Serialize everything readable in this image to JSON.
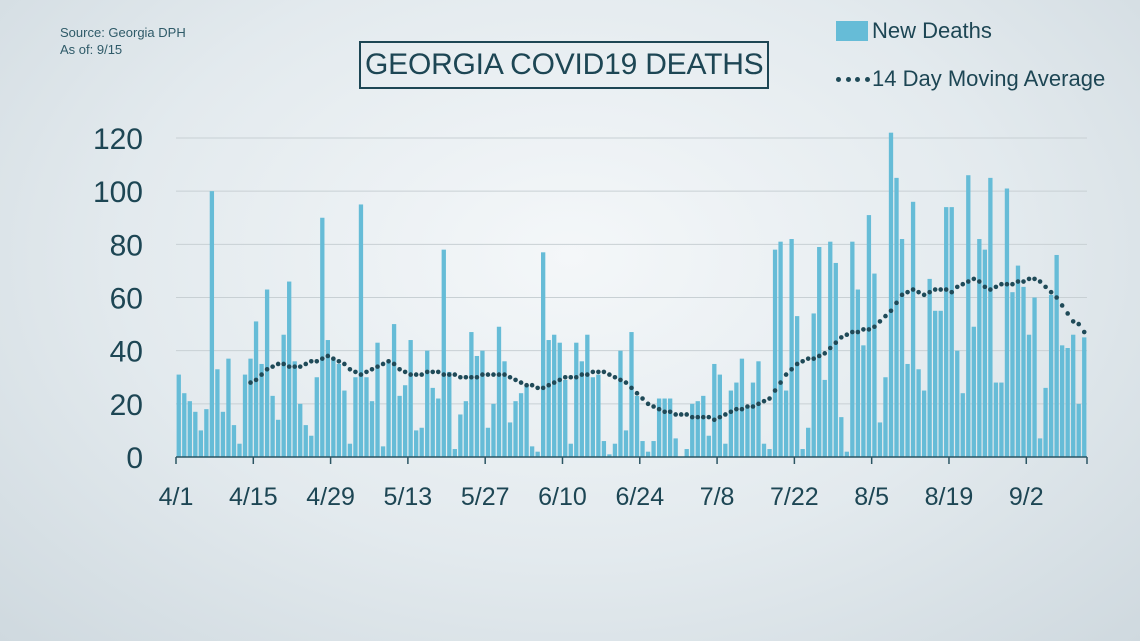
{
  "source": {
    "line1": "Source: Georgia DPH",
    "line2": "As of: 9/15"
  },
  "title": "GEORGIA COVID19 DEATHS",
  "legend": {
    "bars": "New Deaths",
    "line": "14 Day Moving Average"
  },
  "colors": {
    "bar": "#66bcd7",
    "avg": "#1f4a58",
    "text": "#1d4654",
    "grid": "#c8d0d4"
  },
  "chart_data": {
    "type": "bar",
    "title": "GEORGIA COVID19 DEATHS",
    "xlabel": "",
    "ylabel": "",
    "ylim": [
      0,
      120
    ],
    "yticks": [
      0,
      20,
      40,
      60,
      80,
      100,
      120
    ],
    "xticks": [
      "4/1",
      "4/15",
      "4/29",
      "5/13",
      "5/27",
      "6/10",
      "6/24",
      "7/8",
      "7/22",
      "8/5",
      "8/19",
      "9/2"
    ],
    "start_date": "4/1",
    "grid": true,
    "legend_position": "top-right",
    "series": [
      {
        "name": "New Deaths",
        "type": "bar",
        "values": [
          31,
          24,
          21,
          17,
          10,
          18,
          100,
          33,
          17,
          37,
          12,
          5,
          31,
          37,
          51,
          35,
          63,
          23,
          14,
          46,
          66,
          36,
          20,
          12,
          8,
          30,
          90,
          44,
          37,
          35,
          25,
          5,
          30,
          95,
          30,
          21,
          43,
          4,
          36,
          50,
          23,
          27,
          44,
          10,
          11,
          40,
          26,
          22,
          78,
          32,
          3,
          16,
          21,
          47,
          38,
          40,
          11,
          20,
          49,
          36,
          13,
          21,
          24,
          27,
          4,
          2,
          77,
          44,
          46,
          43,
          29,
          5,
          43,
          36,
          46,
          30,
          31,
          6,
          1,
          5,
          40,
          10,
          47,
          23,
          6,
          2,
          6,
          22,
          22,
          22,
          7,
          0,
          3,
          20,
          21,
          23,
          8,
          35,
          31,
          5,
          25,
          28,
          37,
          19,
          28,
          36,
          5,
          3,
          78,
          81,
          25,
          82,
          53,
          3,
          11,
          54,
          79,
          29,
          81,
          73,
          15,
          2,
          81,
          63,
          42,
          91,
          69,
          13,
          30,
          122,
          105,
          82,
          35,
          96,
          33,
          25,
          67,
          55,
          55,
          94,
          94,
          40,
          24,
          106,
          49,
          82,
          78,
          105,
          28,
          28,
          101,
          62,
          72,
          64,
          46,
          60,
          7,
          26,
          61,
          76,
          42,
          41,
          46,
          20,
          45
        ]
      },
      {
        "name": "14 Day Moving Average",
        "type": "line",
        "values": [
          null,
          null,
          null,
          null,
          null,
          null,
          null,
          null,
          null,
          null,
          null,
          null,
          null,
          28,
          29,
          31,
          33,
          34,
          35,
          35,
          34,
          34,
          34,
          35,
          36,
          36,
          37,
          38,
          37,
          36,
          35,
          33,
          32,
          31,
          32,
          33,
          34,
          35,
          36,
          35,
          33,
          32,
          31,
          31,
          31,
          32,
          32,
          32,
          31,
          31,
          31,
          30,
          30,
          30,
          30,
          31,
          31,
          31,
          31,
          31,
          30,
          29,
          28,
          27,
          27,
          26,
          26,
          27,
          28,
          29,
          30,
          30,
          30,
          31,
          31,
          32,
          32,
          32,
          31,
          30,
          29,
          28,
          26,
          24,
          22,
          20,
          19,
          18,
          17,
          17,
          16,
          16,
          16,
          15,
          15,
          15,
          15,
          14,
          15,
          16,
          17,
          18,
          18,
          19,
          19,
          20,
          21,
          22,
          25,
          28,
          31,
          33,
          35,
          36,
          37,
          37,
          38,
          39,
          41,
          43,
          45,
          46,
          47,
          47,
          48,
          48,
          49,
          51,
          53,
          55,
          58,
          61,
          62,
          63,
          62,
          61,
          62,
          63,
          63,
          63,
          62,
          64,
          65,
          66,
          67,
          66,
          64,
          63,
          64,
          65,
          65,
          65,
          66,
          66,
          67,
          67,
          66,
          64,
          62,
          60,
          57,
          54,
          51,
          50,
          47
        ]
      }
    ]
  }
}
